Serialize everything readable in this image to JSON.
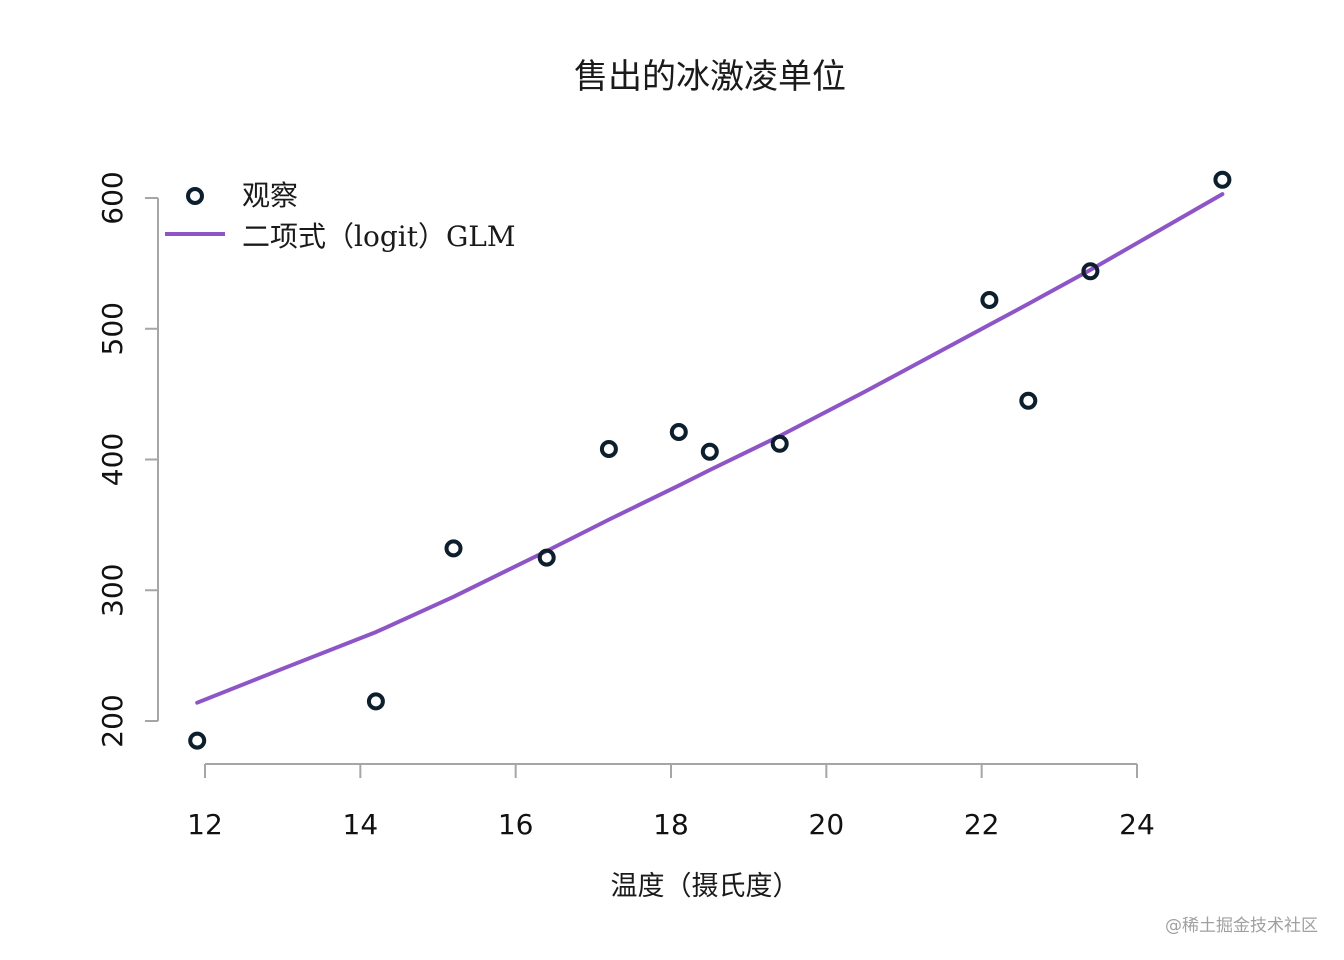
{
  "watermark": "@稀土掘金技术社区",
  "chart_data": {
    "type": "scatter",
    "title": "售出的冰激凌单位",
    "xlabel": "温度（摄氏度）",
    "ylabel": "",
    "xlim": [
      11.5,
      25.5
    ],
    "ylim": [
      180,
      620
    ],
    "xticks": [
      12,
      14,
      16,
      18,
      20,
      22,
      24
    ],
    "yticks": [
      200,
      300,
      400,
      500,
      600
    ],
    "grid": false,
    "legend_position": "top-left",
    "series": [
      {
        "name": "观察",
        "type": "scatter",
        "color": "#0d1f2d",
        "x": [
          11.9,
          14.2,
          15.2,
          16.4,
          17.2,
          18.1,
          18.5,
          19.4,
          22.1,
          22.6,
          23.4,
          25.1
        ],
        "y": [
          185,
          215,
          332,
          325,
          408,
          421,
          406,
          412,
          522,
          445,
          544,
          614
        ]
      },
      {
        "name": "二项式（logit）GLM",
        "type": "line",
        "color": "#8e55c7",
        "x": [
          11.9,
          13.0,
          14.2,
          15.2,
          16.4,
          17.2,
          18.1,
          18.5,
          19.4,
          20.5,
          22.1,
          22.6,
          23.4,
          25.1
        ],
        "y": [
          214,
          240,
          268,
          295,
          330,
          354,
          380,
          392,
          418,
          452,
          503,
          519,
          545,
          603
        ]
      }
    ]
  }
}
